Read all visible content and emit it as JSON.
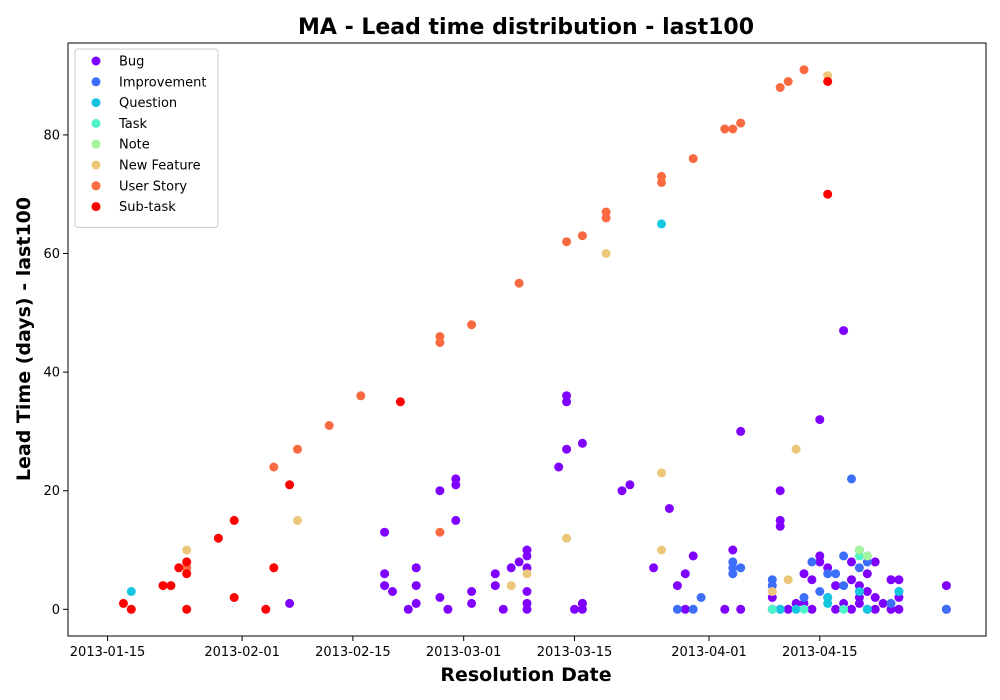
{
  "chart_data": {
    "type": "scatter",
    "title": "MA - Lead time distribution - last100",
    "xlabel": "Resolution Date",
    "ylabel": "Lead Time (days) - last100",
    "xlim": [
      "2013-01-10",
      "2013-05-06"
    ],
    "ylim": [
      -4.5,
      95.5
    ],
    "x_ticks": [
      "2013-01-15",
      "2013-02-01",
      "2013-02-15",
      "2013-03-01",
      "2013-03-15",
      "2013-04-01",
      "2013-04-15"
    ],
    "y_ticks": [
      0,
      20,
      40,
      60,
      80
    ],
    "legend_position": "upper-left",
    "grid": false,
    "series": [
      {
        "name": "Bug",
        "color": "#8000ff",
        "points": [
          [
            "2013-02-07",
            1
          ],
          [
            "2013-02-19",
            13
          ],
          [
            "2013-02-19",
            6
          ],
          [
            "2013-02-19",
            4
          ],
          [
            "2013-02-20",
            3
          ],
          [
            "2013-02-22",
            0
          ],
          [
            "2013-02-23",
            7
          ],
          [
            "2013-02-23",
            4
          ],
          [
            "2013-02-23",
            1
          ],
          [
            "2013-02-26",
            2
          ],
          [
            "2013-02-26",
            20
          ],
          [
            "2013-02-27",
            0
          ],
          [
            "2013-02-28",
            22
          ],
          [
            "2013-02-28",
            21
          ],
          [
            "2013-02-28",
            15
          ],
          [
            "2013-03-02",
            3
          ],
          [
            "2013-03-02",
            1
          ],
          [
            "2013-03-05",
            6
          ],
          [
            "2013-03-05",
            4
          ],
          [
            "2013-03-06",
            0
          ],
          [
            "2013-03-07",
            7
          ],
          [
            "2013-03-08",
            8
          ],
          [
            "2013-03-09",
            10
          ],
          [
            "2013-03-09",
            9
          ],
          [
            "2013-03-09",
            7
          ],
          [
            "2013-03-09",
            3
          ],
          [
            "2013-03-09",
            1
          ],
          [
            "2013-03-09",
            0
          ],
          [
            "2013-03-13",
            24
          ],
          [
            "2013-03-14",
            36
          ],
          [
            "2013-03-14",
            35
          ],
          [
            "2013-03-14",
            27
          ],
          [
            "2013-03-15",
            0
          ],
          [
            "2013-03-16",
            1
          ],
          [
            "2013-03-16",
            0
          ],
          [
            "2013-03-16",
            28
          ],
          [
            "2013-03-16",
            1
          ],
          [
            "2013-03-21",
            20
          ],
          [
            "2013-03-22",
            21
          ],
          [
            "2013-03-25",
            7
          ],
          [
            "2013-03-27",
            17
          ],
          [
            "2013-03-28",
            4
          ],
          [
            "2013-03-29",
            6
          ],
          [
            "2013-03-29",
            0
          ],
          [
            "2013-03-30",
            9
          ],
          [
            "2013-04-03",
            0
          ],
          [
            "2013-04-04",
            10
          ],
          [
            "2013-04-05",
            30
          ],
          [
            "2013-04-05",
            0
          ],
          [
            "2013-04-09",
            0
          ],
          [
            "2013-04-09",
            2
          ],
          [
            "2013-04-10",
            15
          ],
          [
            "2013-04-10",
            14
          ],
          [
            "2013-04-10",
            20
          ],
          [
            "2013-04-11",
            0
          ],
          [
            "2013-04-12",
            1
          ],
          [
            "2013-04-13",
            1
          ],
          [
            "2013-04-13",
            6
          ],
          [
            "2013-04-14",
            5
          ],
          [
            "2013-04-14",
            0
          ],
          [
            "2013-04-15",
            8
          ],
          [
            "2013-04-15",
            9
          ],
          [
            "2013-04-15",
            32
          ],
          [
            "2013-04-16",
            7
          ],
          [
            "2013-04-16",
            2
          ],
          [
            "2013-04-17",
            0
          ],
          [
            "2013-04-17",
            4
          ],
          [
            "2013-04-18",
            47
          ],
          [
            "2013-04-18",
            1
          ],
          [
            "2013-04-19",
            8
          ],
          [
            "2013-04-19",
            5
          ],
          [
            "2013-04-19",
            0
          ],
          [
            "2013-04-20",
            4
          ],
          [
            "2013-04-20",
            2
          ],
          [
            "2013-04-20",
            1
          ],
          [
            "2013-04-21",
            6
          ],
          [
            "2013-04-21",
            3
          ],
          [
            "2013-04-21",
            0
          ],
          [
            "2013-04-22",
            2
          ],
          [
            "2013-04-22",
            8
          ],
          [
            "2013-04-22",
            0
          ],
          [
            "2013-04-23",
            1
          ],
          [
            "2013-04-24",
            5
          ],
          [
            "2013-04-24",
            0
          ],
          [
            "2013-04-25",
            5
          ],
          [
            "2013-04-25",
            2
          ],
          [
            "2013-04-25",
            0
          ],
          [
            "2013-05-01",
            4
          ],
          [
            "2013-05-01",
            0
          ]
        ]
      },
      {
        "name": "Improvement",
        "color": "#3d6efa",
        "points": [
          [
            "2013-03-28",
            0
          ],
          [
            "2013-03-30",
            0
          ],
          [
            "2013-03-31",
            2
          ],
          [
            "2013-04-04",
            8
          ],
          [
            "2013-04-04",
            7
          ],
          [
            "2013-04-04",
            6
          ],
          [
            "2013-04-05",
            7
          ],
          [
            "2013-04-09",
            5
          ],
          [
            "2013-04-09",
            4
          ],
          [
            "2013-04-10",
            0
          ],
          [
            "2013-04-13",
            2
          ],
          [
            "2013-04-14",
            8
          ],
          [
            "2013-04-15",
            3
          ],
          [
            "2013-04-16",
            6
          ],
          [
            "2013-04-17",
            6
          ],
          [
            "2013-04-18",
            9
          ],
          [
            "2013-04-18",
            4
          ],
          [
            "2013-04-19",
            22
          ],
          [
            "2013-04-20",
            10
          ],
          [
            "2013-04-20",
            7
          ],
          [
            "2013-04-21",
            9
          ],
          [
            "2013-04-21",
            8
          ],
          [
            "2013-04-24",
            1
          ],
          [
            "2013-04-25",
            3
          ],
          [
            "2013-05-01",
            0
          ]
        ]
      },
      {
        "name": "Question",
        "color": "#14c6e0",
        "points": [
          [
            "2013-01-18",
            3
          ],
          [
            "2013-03-26",
            65
          ],
          [
            "2013-04-10",
            0
          ],
          [
            "2013-04-12",
            0
          ],
          [
            "2013-04-16",
            2
          ],
          [
            "2013-04-16",
            1
          ],
          [
            "2013-04-20",
            3
          ],
          [
            "2013-04-21",
            0
          ],
          [
            "2013-04-25",
            3
          ]
        ]
      },
      {
        "name": "Task",
        "color": "#4ff5c9",
        "points": [
          [
            "2013-04-09",
            0
          ],
          [
            "2013-04-13",
            0
          ],
          [
            "2013-04-18",
            0
          ],
          [
            "2013-04-20",
            9
          ]
        ]
      },
      {
        "name": "Note",
        "color": "#a5f59e",
        "points": [
          [
            "2013-04-20",
            10
          ],
          [
            "2013-04-21",
            9
          ]
        ]
      },
      {
        "name": "New Feature",
        "color": "#ecc77a",
        "points": [
          [
            "2013-01-25",
            10
          ],
          [
            "2013-02-08",
            15
          ],
          [
            "2013-03-07",
            4
          ],
          [
            "2013-03-09",
            6
          ],
          [
            "2013-03-14",
            12
          ],
          [
            "2013-03-19",
            60
          ],
          [
            "2013-03-26",
            23
          ],
          [
            "2013-03-26",
            10
          ],
          [
            "2013-04-09",
            3
          ],
          [
            "2013-04-11",
            5
          ],
          [
            "2013-04-12",
            27
          ],
          [
            "2013-04-16",
            90
          ]
        ]
      },
      {
        "name": "User Story",
        "color": "#f96a40",
        "points": [
          [
            "2013-01-25",
            8
          ],
          [
            "2013-01-25",
            7
          ],
          [
            "2013-02-05",
            24
          ],
          [
            "2013-02-08",
            27
          ],
          [
            "2013-02-12",
            31
          ],
          [
            "2013-02-16",
            36
          ],
          [
            "2013-02-26",
            13
          ],
          [
            "2013-02-26",
            46
          ],
          [
            "2013-02-26",
            45
          ],
          [
            "2013-03-02",
            48
          ],
          [
            "2013-03-08",
            55
          ],
          [
            "2013-03-14",
            62
          ],
          [
            "2013-03-16",
            63
          ],
          [
            "2013-03-19",
            67
          ],
          [
            "2013-03-19",
            66
          ],
          [
            "2013-03-26",
            73
          ],
          [
            "2013-03-26",
            72
          ],
          [
            "2013-03-30",
            76
          ],
          [
            "2013-04-03",
            81
          ],
          [
            "2013-04-04",
            81
          ],
          [
            "2013-04-05",
            82
          ],
          [
            "2013-04-10",
            88
          ],
          [
            "2013-04-11",
            89
          ],
          [
            "2013-04-13",
            91
          ]
        ]
      },
      {
        "name": "Sub-task",
        "color": "#ff0000",
        "points": [
          [
            "2013-01-17",
            1
          ],
          [
            "2013-01-18",
            0
          ],
          [
            "2013-01-22",
            4
          ],
          [
            "2013-01-23",
            4
          ],
          [
            "2013-01-24",
            7
          ],
          [
            "2013-01-25",
            0
          ],
          [
            "2013-01-25",
            6
          ],
          [
            "2013-01-25",
            8
          ],
          [
            "2013-01-29",
            12
          ],
          [
            "2013-01-31",
            15
          ],
          [
            "2013-01-31",
            2
          ],
          [
            "2013-02-04",
            0
          ],
          [
            "2013-02-05",
            7
          ],
          [
            "2013-02-07",
            21
          ],
          [
            "2013-02-21",
            35
          ],
          [
            "2013-04-16",
            89
          ],
          [
            "2013-04-16",
            70
          ]
        ]
      }
    ]
  }
}
